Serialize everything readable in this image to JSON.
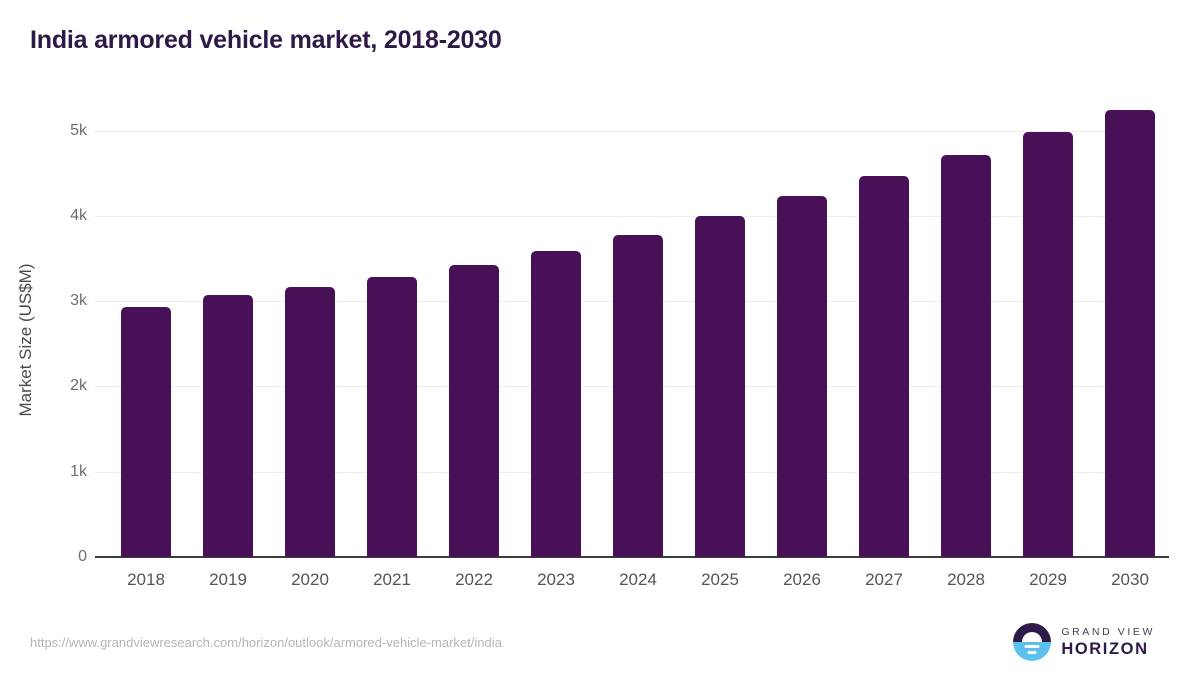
{
  "chart": {
    "title": "India armored vehicle market, 2018-2030",
    "ylabel": "Market Size (US$M)"
  },
  "chart_data": {
    "type": "bar",
    "title": "India armored vehicle market, 2018-2030",
    "xlabel": "",
    "ylabel": "Market Size (US$M)",
    "categories": [
      "2018",
      "2019",
      "2020",
      "2021",
      "2022",
      "2023",
      "2024",
      "2025",
      "2026",
      "2027",
      "2028",
      "2029",
      "2030"
    ],
    "values": [
      2935,
      3070,
      3165,
      3285,
      3430,
      3590,
      3780,
      4000,
      4230,
      4470,
      4720,
      4985,
      5240
    ],
    "ylim": [
      0,
      5500
    ],
    "yticks": [
      {
        "value": 0,
        "label": "0"
      },
      {
        "value": 1000,
        "label": "1k"
      },
      {
        "value": 2000,
        "label": "2k"
      },
      {
        "value": 3000,
        "label": "3k"
      },
      {
        "value": 4000,
        "label": "4k"
      },
      {
        "value": 5000,
        "label": "5k"
      }
    ],
    "grid": true,
    "legend": false,
    "bar_color": "#481157"
  },
  "footer": {
    "source_url": "https://www.grandviewresearch.com/horizon/outlook/armored-vehicle-market/india",
    "logo": {
      "line1": "GRAND VIEW",
      "line2": "HORIZON"
    }
  },
  "colors": {
    "bar": "#481157",
    "title_text": "#2e1a47",
    "gridline": "#ececec",
    "axis_line": "#3c3c3c",
    "y_tick_text": "#6f6f6f",
    "x_tick_text": "#555555",
    "url_text": "#b5b5b5",
    "logo_dark": "#2e1a47",
    "logo_blue": "#5bc2ee"
  }
}
